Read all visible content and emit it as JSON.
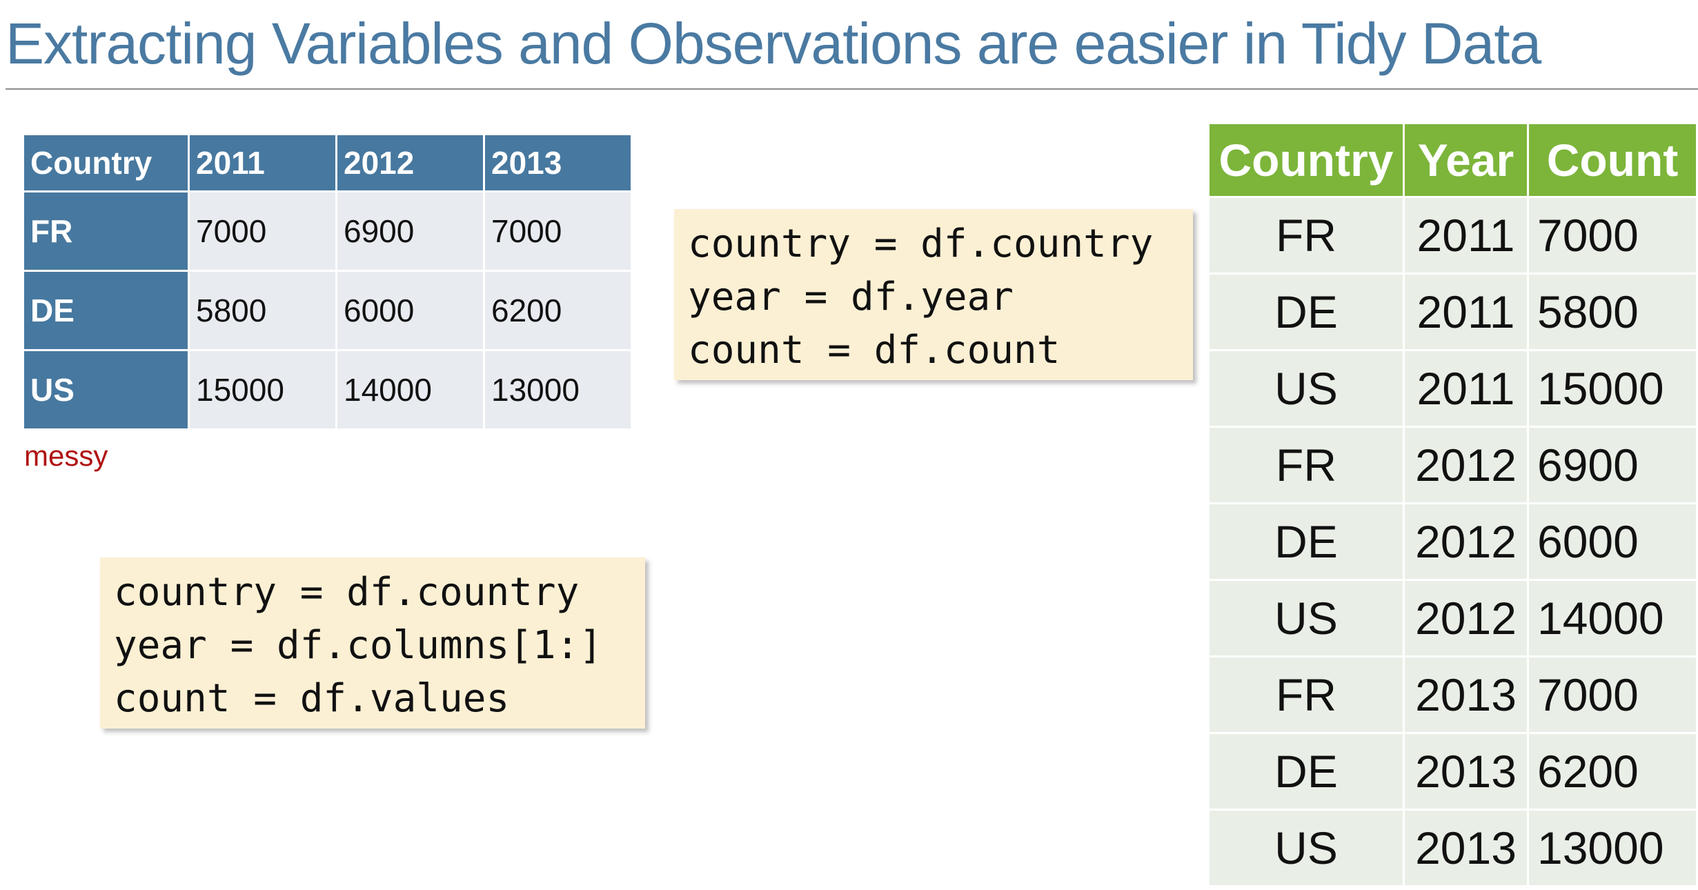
{
  "title": "Extracting Variables and Observations are easier in Tidy Data",
  "messy_table": {
    "headers": [
      "Country",
      "2011",
      "2012",
      "2013"
    ],
    "rows": [
      {
        "country": "FR",
        "values": [
          "7000",
          "6900",
          "7000"
        ]
      },
      {
        "country": "DE",
        "values": [
          "5800",
          "6000",
          "6200"
        ]
      },
      {
        "country": "US",
        "values": [
          "15000",
          "14000",
          "13000"
        ]
      }
    ],
    "label": "messy"
  },
  "code_tidy": {
    "lines": [
      "country = df.country",
      "year = df.year",
      "count = df.count"
    ]
  },
  "code_messy": {
    "lines": [
      "country = df.country",
      "year = df.columns[1:]",
      "count = df.values"
    ]
  },
  "tidy_table": {
    "headers": [
      "Country",
      "Year",
      "Count"
    ],
    "rows": [
      [
        "FR",
        "2011",
        "7000"
      ],
      [
        "DE",
        "2011",
        "5800"
      ],
      [
        "US",
        "2011",
        "15000"
      ],
      [
        "FR",
        "2012",
        "6900"
      ],
      [
        "DE",
        "2012",
        "6000"
      ],
      [
        "US",
        "2012",
        "14000"
      ],
      [
        "FR",
        "2013",
        "7000"
      ],
      [
        "DE",
        "2013",
        "6200"
      ],
      [
        "US",
        "2013",
        "13000"
      ]
    ]
  },
  "colors": {
    "title": "#4a7aa2",
    "messy_header": "#47789f",
    "messy_cell": "#e8ebf0",
    "tidy_header": "#7cb53a",
    "tidy_cell": "#e9efe6",
    "code_bg": "#fcf0d4",
    "messy_label": "#b01212"
  }
}
